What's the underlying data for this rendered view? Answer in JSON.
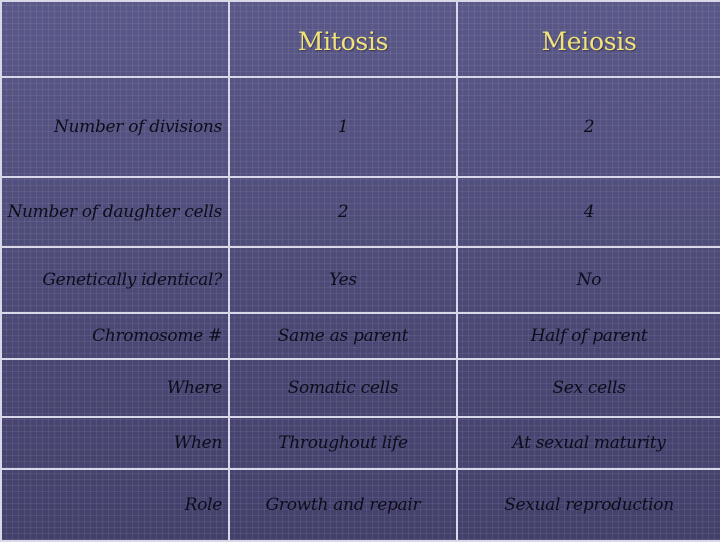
{
  "header": {
    "corner": "",
    "mitosis": "Mitosis",
    "meiosis": "Meiosis"
  },
  "rows": [
    {
      "label": "Number of divisions",
      "mitosis": "1",
      "meiosis": "2"
    },
    {
      "label": "Number of daughter cells",
      "mitosis": "2",
      "meiosis": "4"
    },
    {
      "label": "Genetically identical?",
      "mitosis": "Yes",
      "meiosis": "No"
    },
    {
      "label": "Chromosome #",
      "mitosis": "Same as parent",
      "meiosis": "Half of parent"
    },
    {
      "label": "Where",
      "mitosis": "Somatic cells",
      "meiosis": "Sex cells"
    },
    {
      "label": "When",
      "mitosis": "Throughout life",
      "meiosis": "At sexual maturity"
    },
    {
      "label": "Role",
      "mitosis": "Growth and repair",
      "meiosis": "Sexual reproduction"
    }
  ],
  "colors": {
    "background": "#4f4d7b",
    "header_text": "#f1e27a",
    "grid_lines": "#d9d8e8",
    "body_text": "#0d0c1a"
  }
}
